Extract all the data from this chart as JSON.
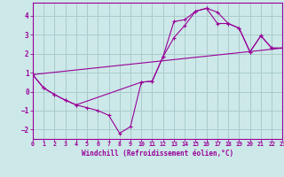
{
  "xlabel": "Windchill (Refroidissement éolien,°C)",
  "bg_color": "#cce8e8",
  "grid_color": "#aacccc",
  "line_color": "#990099",
  "xlim": [
    0,
    23
  ],
  "ylim": [
    -2.5,
    4.7
  ],
  "xticks": [
    0,
    1,
    2,
    3,
    4,
    5,
    6,
    7,
    8,
    9,
    10,
    11,
    12,
    13,
    14,
    15,
    16,
    17,
    18,
    19,
    20,
    21,
    22,
    23
  ],
  "yticks": [
    -2,
    -1,
    0,
    1,
    2,
    3,
    4
  ],
  "series1_x": [
    0,
    1,
    2,
    3,
    4,
    5,
    6,
    7,
    8,
    9,
    10,
    11,
    12,
    13,
    14,
    15,
    16,
    17,
    18,
    19,
    20,
    21,
    22,
    23
  ],
  "series1_y": [
    0.9,
    0.2,
    -0.15,
    -0.45,
    -0.7,
    -0.85,
    -1.0,
    -1.25,
    -2.2,
    -1.85,
    0.5,
    0.55,
    1.85,
    3.7,
    3.8,
    4.25,
    4.4,
    4.2,
    3.6,
    3.35,
    2.1,
    2.95,
    2.3,
    2.3
  ],
  "series2_x": [
    0,
    1,
    2,
    3,
    4,
    10,
    11,
    12,
    13,
    14,
    15,
    16,
    17,
    18,
    19,
    20,
    21,
    22,
    23
  ],
  "series2_y": [
    0.9,
    0.2,
    -0.15,
    -0.45,
    -0.7,
    0.5,
    0.55,
    1.85,
    2.85,
    3.5,
    4.25,
    4.4,
    3.6,
    3.6,
    3.35,
    2.1,
    2.95,
    2.3,
    2.3
  ],
  "series3_x": [
    0,
    23
  ],
  "series3_y": [
    0.9,
    2.3
  ]
}
